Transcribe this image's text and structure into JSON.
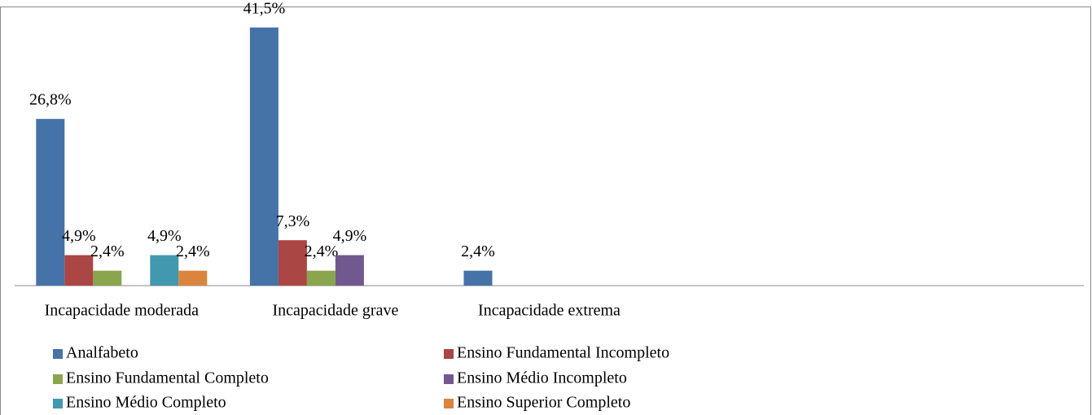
{
  "chart_data": {
    "type": "bar",
    "categories": [
      "Incapacidade moderada",
      "Incapacidade grave",
      "Incapacidade extrema",
      null,
      null
    ],
    "series": [
      {
        "name": "Analfabeto",
        "color": "#4572a7",
        "values": [
          26.8,
          41.5,
          2.4,
          null,
          null
        ],
        "value_labels": [
          "26,8%",
          "41,5%",
          "2,4%",
          null,
          null
        ]
      },
      {
        "name": "Ensino Fundamental Incompleto",
        "color": "#aa4643",
        "values": [
          4.9,
          7.3,
          null,
          null,
          null
        ],
        "value_labels": [
          "4,9%",
          "7,3%",
          null,
          null,
          null
        ]
      },
      {
        "name": "Ensino Fundamental Completo",
        "color": "#89a54e",
        "values": [
          2.4,
          2.4,
          null,
          null,
          null
        ],
        "value_labels": [
          "2,4%",
          "2,4%",
          null,
          null,
          null
        ]
      },
      {
        "name": "Ensino Médio Incompleto",
        "color": "#71588f",
        "values": [
          null,
          4.9,
          null,
          null,
          null
        ],
        "value_labels": [
          null,
          "4,9%",
          null,
          null,
          null
        ]
      },
      {
        "name": "Ensino Médio Completo",
        "color": "#4198af",
        "values": [
          4.9,
          null,
          null,
          null,
          null
        ],
        "value_labels": [
          "4,9%",
          null,
          null,
          null,
          null
        ]
      },
      {
        "name": "Ensino Superior Completo",
        "color": "#db843d",
        "values": [
          2.4,
          null,
          null,
          null,
          null
        ],
        "value_labels": [
          "2,4%",
          null,
          null,
          null,
          null
        ]
      }
    ],
    "ylim": [
      0,
      45
    ],
    "legend": "bottom"
  }
}
